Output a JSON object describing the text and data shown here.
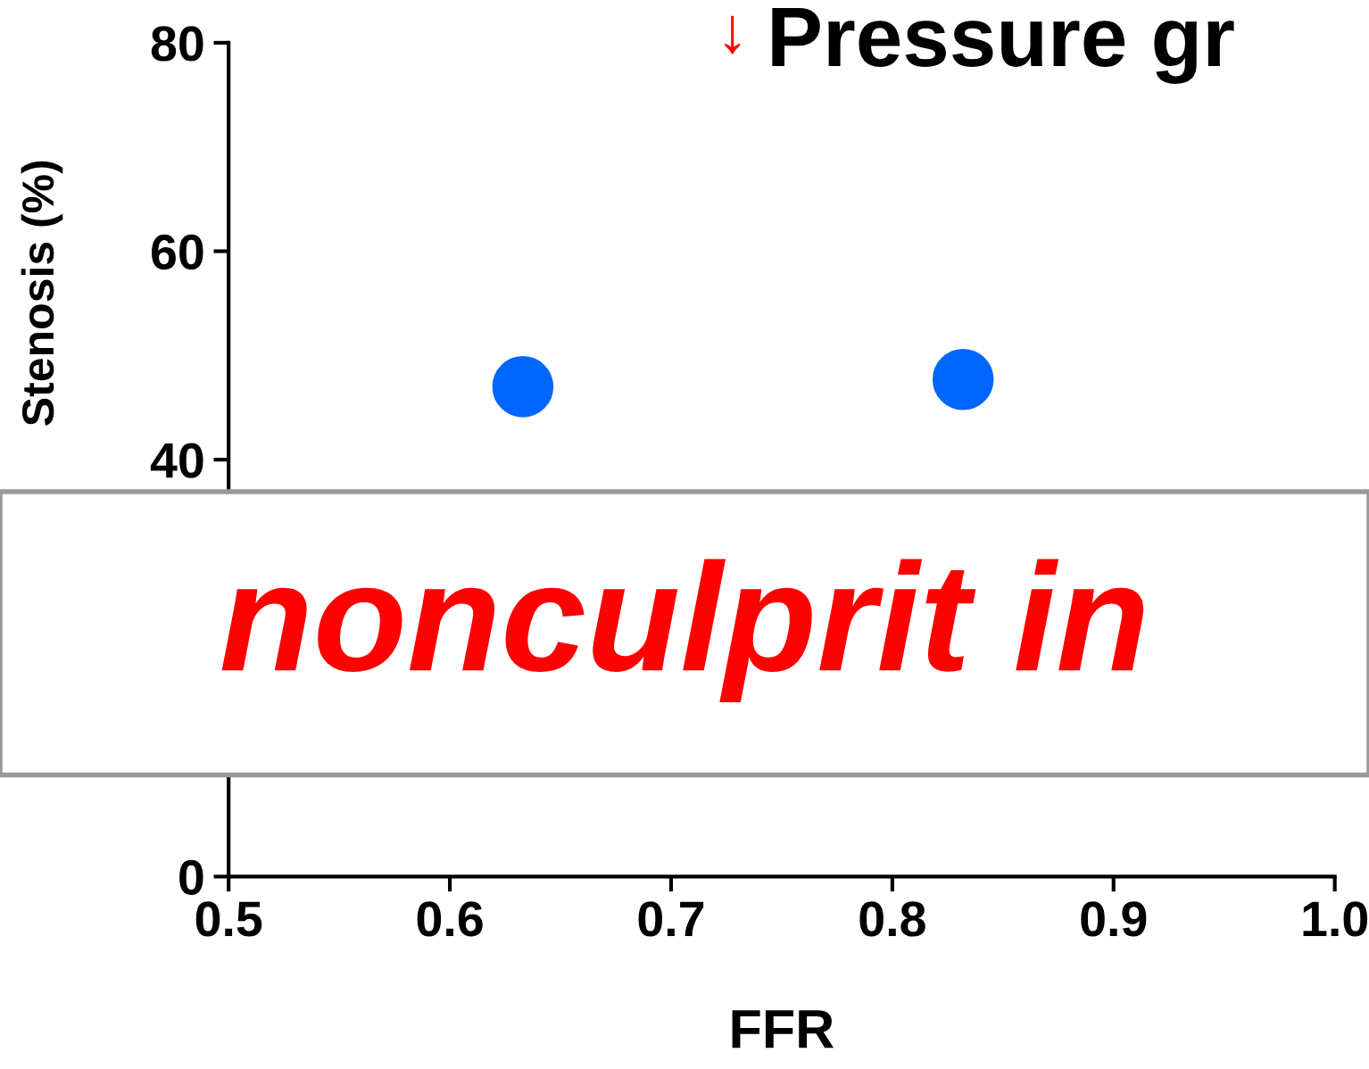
{
  "chart_data": {
    "type": "scatter",
    "title": "Pressure gr",
    "xlabel": "FFR",
    "ylabel": "Stenosis (%)",
    "annotations": [
      "↓",
      "nonculprit in"
    ],
    "x": [
      0.633,
      0.832
    ],
    "series": [
      {
        "color": "#0066ff",
        "values": [
          47,
          47.7
        ]
      }
    ],
    "marker": "circle",
    "xlim": [
      0.5,
      1.0
    ],
    "xticks": [
      0.5,
      0.6,
      0.7,
      0.8,
      0.9,
      {
        "value": 1.0,
        "label": "1.0"
      }
    ],
    "ylim": [
      0,
      80
    ],
    "yticks": [
      0,
      40,
      60,
      80
    ],
    "grid": false
  }
}
